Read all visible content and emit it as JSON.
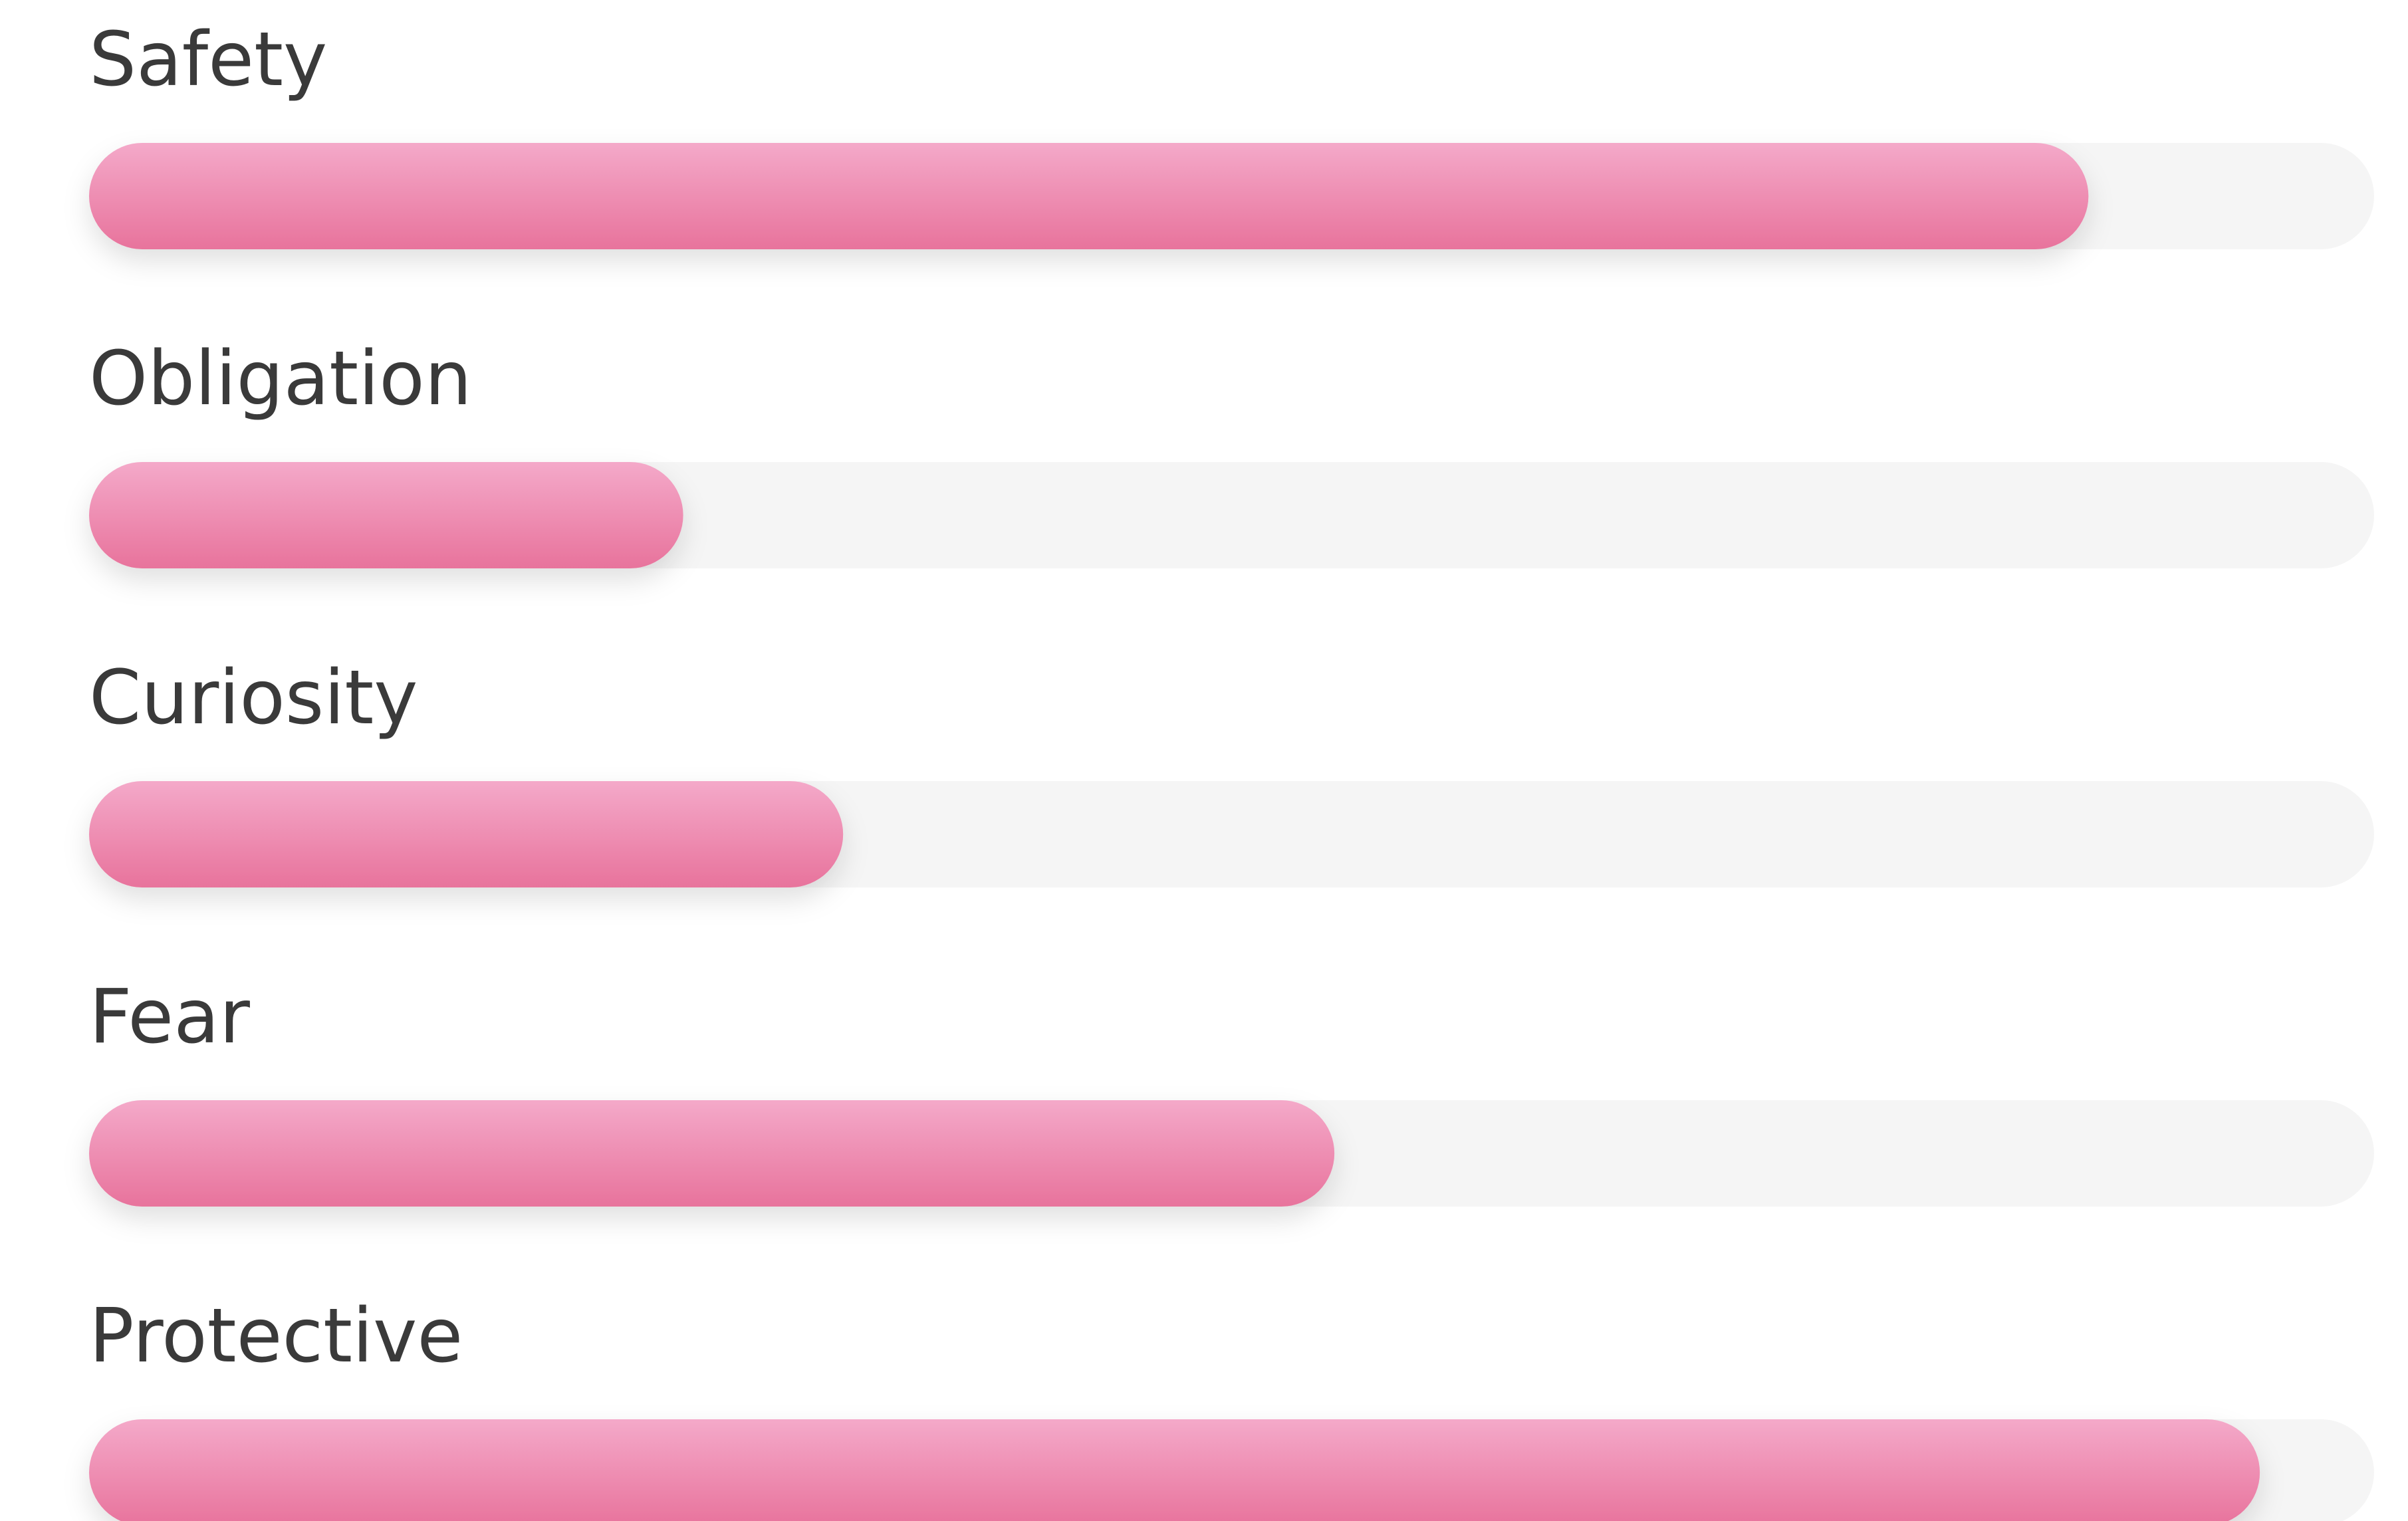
{
  "chart_data": {
    "type": "bar",
    "orientation": "horizontal",
    "categories": [
      "Safety",
      "Obligation",
      "Curiosity",
      "Fear",
      "Protective"
    ],
    "values": [
      87.5,
      26,
      33,
      54.5,
      95
    ],
    "xlim": [
      0,
      100
    ],
    "color": "#ec7aa3",
    "track_color": "#f5f5f5"
  }
}
